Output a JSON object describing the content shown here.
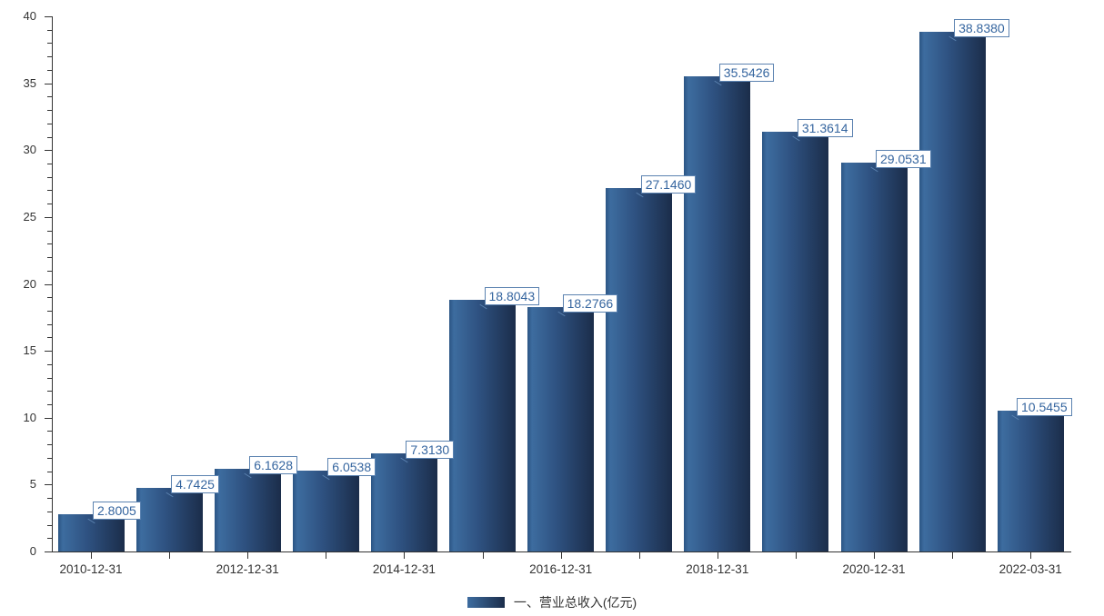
{
  "chart_data": {
    "type": "bar",
    "title": "",
    "values": [
      2.8005,
      4.7425,
      6.1628,
      6.0538,
      7.313,
      18.8043,
      18.2766,
      27.146,
      35.5426,
      31.3614,
      29.0531,
      38.838,
      10.5455
    ],
    "value_labels": [
      "2.8005",
      "4.7425",
      "6.1628",
      "6.0538",
      "7.3130",
      "18.8043",
      "18.2766",
      "27.1460",
      "35.5426",
      "31.3614",
      "29.0531",
      "38.8380",
      "10.5455"
    ],
    "x_tick_labels": [
      "2010-12-31",
      "2012-12-31",
      "2014-12-31",
      "2016-12-31",
      "2018-12-31",
      "2020-12-31",
      "2022-03-31"
    ],
    "x_label_every_n_bars": 2,
    "y_ticks": [
      0,
      5,
      10,
      15,
      20,
      25,
      30,
      35,
      40
    ],
    "y_minor_tick_interval": 1,
    "ylim": [
      0,
      40
    ],
    "grid": false,
    "legend": {
      "position": "bottom-center",
      "label": "一、营业总收入(亿元)"
    },
    "colors": {
      "bar_gradient_edge": "#2b5584",
      "bar_gradient_light": "#3d6c9f",
      "bar_gradient_mid": "#2e5180",
      "bar_gradient_dark": "#1b2d4a",
      "value_label_text": "#35659f",
      "value_label_border": "#5b82b0",
      "value_label_bg": "#ffffff",
      "axis_line": "#333333",
      "axis_text": "#333333"
    }
  }
}
